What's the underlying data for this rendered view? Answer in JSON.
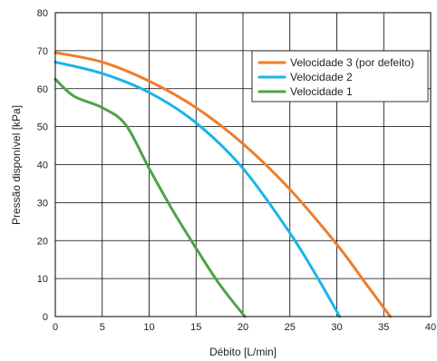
{
  "chart_data": {
    "type": "line",
    "xlabel": "Débito [L/min]",
    "ylabel": "Pressão disponível [kPa]",
    "xlim": [
      0,
      40
    ],
    "ylim": [
      0,
      80
    ],
    "xticks": [
      "0",
      "5",
      "10",
      "15",
      "20",
      "25",
      "30",
      "35",
      "40"
    ],
    "yticks": [
      "0",
      "10",
      "20",
      "30",
      "40",
      "50",
      "60",
      "70",
      "80"
    ],
    "grid": true,
    "legend_position": "top-right",
    "series": [
      {
        "name": "Velocidade 3 (por defeito)",
        "color": "#ee7d2b",
        "x": [
          0,
          5,
          10,
          15,
          20,
          25,
          30,
          33,
          35.7
        ],
        "y": [
          69.5,
          67,
          62,
          55,
          45.5,
          33.5,
          19,
          9,
          0
        ]
      },
      {
        "name": "Velocidade 2",
        "color": "#1bb4e6",
        "x": [
          0,
          5,
          10,
          15,
          20,
          25,
          28,
          30.3
        ],
        "y": [
          67,
          64,
          59,
          51,
          39,
          22,
          10,
          0
        ]
      },
      {
        "name": "Velocidade 1",
        "color": "#4ea346",
        "x": [
          0,
          2,
          5,
          7.5,
          10,
          12.5,
          15,
          17.5,
          20.2
        ],
        "y": [
          62.5,
          58,
          55,
          50.5,
          39,
          28,
          18,
          8.5,
          0
        ]
      }
    ]
  }
}
